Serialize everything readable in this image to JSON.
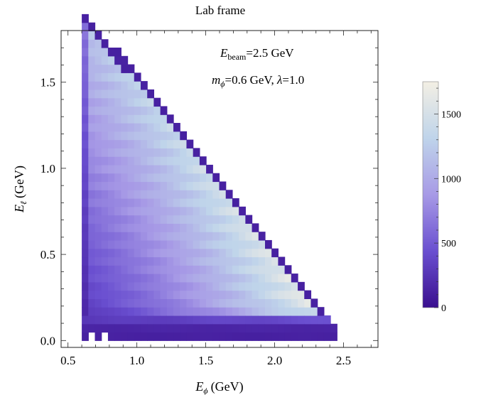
{
  "chart_data": {
    "type": "heatmap",
    "title": "Lab frame",
    "xlabel": {
      "main": "E",
      "sub": "ϕ",
      "unit": "(GeV)"
    },
    "ylabel": {
      "main": "E",
      "sub": "ℓ",
      "unit": "(GeV)"
    },
    "xlim": [
      0.45,
      2.75
    ],
    "ylim": [
      -0.04,
      1.8
    ],
    "x_ticks": [
      0.5,
      1.0,
      1.5,
      2.0,
      2.5
    ],
    "x_tick_labels": [
      "0.5",
      "1.0",
      "1.5",
      "2.0",
      "2.5"
    ],
    "y_ticks": [
      0.0,
      0.5,
      1.0,
      1.5
    ],
    "y_tick_labels": [
      "0.0",
      "0.5",
      "1.0",
      "1.5"
    ],
    "grid": false,
    "annotations": [
      {
        "parts": [
          "E",
          "beam",
          "=2.5 GeV"
        ]
      },
      {
        "parts": [
          "m",
          "ϕ",
          "=0.6 GeV, ",
          "λ",
          "=1.0"
        ]
      }
    ],
    "colorbar": {
      "min": 0,
      "max": 1750,
      "ticks": [
        0,
        500,
        1000,
        1500
      ],
      "tick_labels": [
        "0",
        "500",
        "1000",
        "1500"
      ],
      "colors": [
        "#3a0f8f",
        "#6a4fd0",
        "#a79ae6",
        "#bfd4ea",
        "#f3efe4"
      ]
    },
    "bins": {
      "x_start": 0.6,
      "y_start": 0.0,
      "width": 0.0475,
      "height": 0.0486,
      "e_beam": 2.5,
      "m_phi": 0.6
    },
    "note_values": "density peaks (~1700) near the upper diagonal edge around E_phi 1.9-2.2 GeV, E_l 0.25-0.45 GeV; low (~150-300) along the bottom strip and left edge"
  }
}
